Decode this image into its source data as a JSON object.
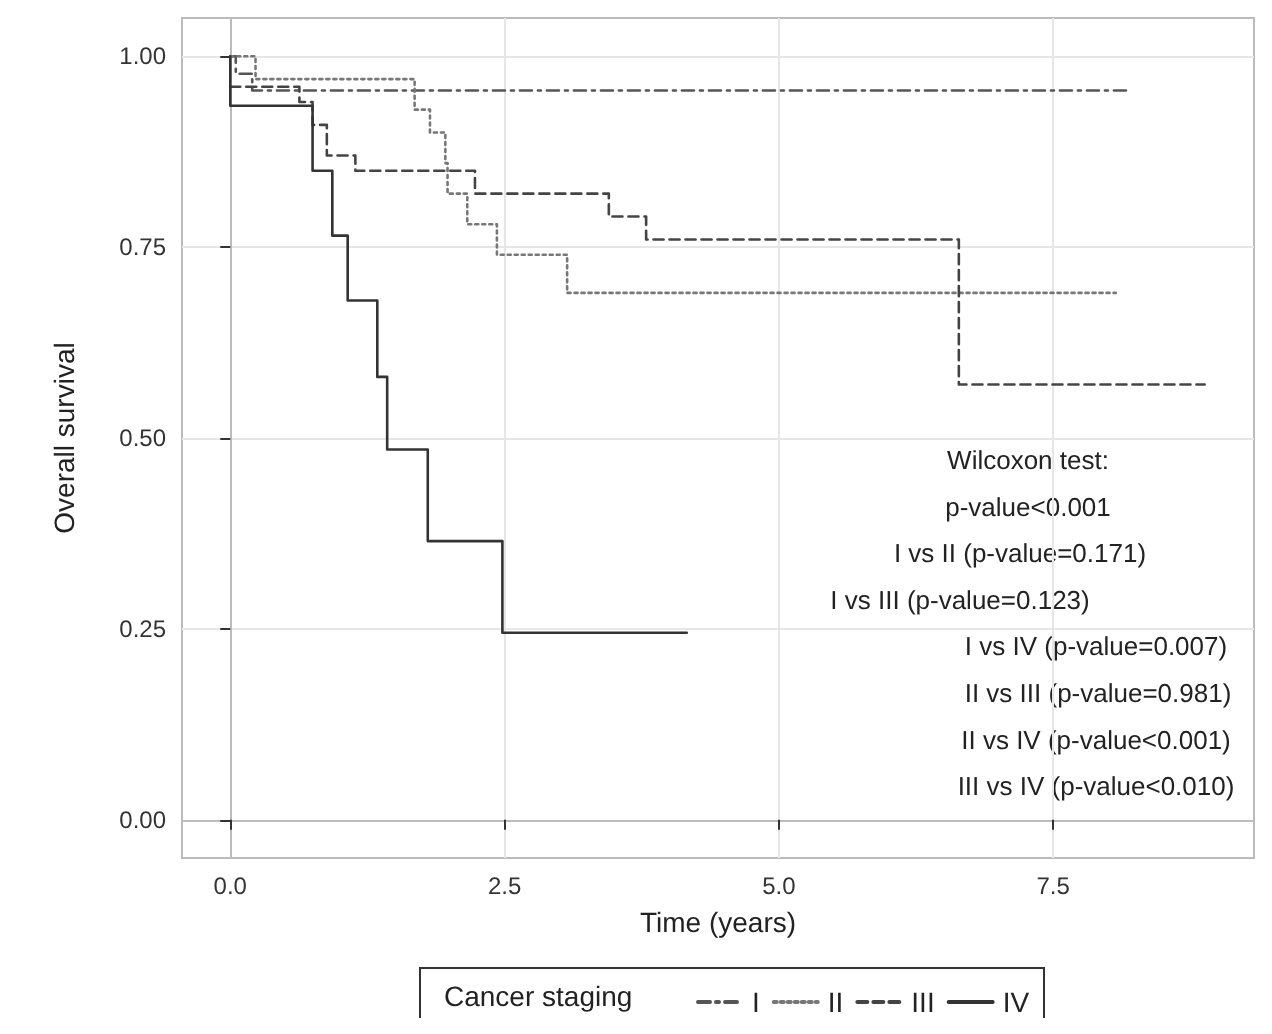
{
  "chart_data": {
    "type": "step",
    "xlabel": "Time (years)",
    "ylabel": "Overall survival",
    "legend_title": "Cancer staging",
    "xlim": [
      -0.44,
      9.33
    ],
    "ylim": [
      -0.05,
      1.05
    ],
    "xticks": [
      {
        "value": 0,
        "label": "0.0"
      },
      2.5,
      {
        "value": 5,
        "label": "5.0"
      },
      7.5
    ],
    "yticks": [
      {
        "value": 0,
        "label": "0.00"
      },
      0.25,
      {
        "value": 0.5,
        "label": "0.50"
      },
      0.75,
      {
        "value": 1,
        "label": "1.00"
      }
    ],
    "grid": true,
    "legend": "bottom",
    "marker": "none",
    "series": [
      {
        "name": "I",
        "color": "#555555",
        "line_style": "dashdot",
        "x": [
          0,
          0.05,
          0.2,
          8.2
        ],
        "values": [
          1,
          0.977,
          0.955,
          0.955
        ]
      },
      {
        "name": "II",
        "color": "#777777",
        "line_style": "dotted",
        "x": [
          0,
          0.23,
          1.68,
          1.82,
          1.96,
          1.98,
          2.16,
          2.43,
          3.07,
          8.07
        ],
        "values": [
          1,
          0.97,
          0.93,
          0.9,
          0.86,
          0.82,
          0.78,
          0.74,
          0.69,
          0.69
        ]
      },
      {
        "name": "III",
        "color": "#444444",
        "line_style": "dashed",
        "x": [
          0,
          0.63,
          0.75,
          0.88,
          1.14,
          2.23,
          3.45,
          3.79,
          6.64,
          8.88
        ],
        "values": [
          0.96,
          0.94,
          0.91,
          0.87,
          0.85,
          0.82,
          0.79,
          0.76,
          0.57,
          0.57
        ]
      },
      {
        "name": "IV",
        "color": "#333333",
        "line_style": "solid",
        "x": [
          0,
          0,
          0.75,
          0.93,
          1.07,
          1.34,
          1.43,
          1.8,
          2.48,
          4.16
        ],
        "values": [
          1,
          0.935,
          0.85,
          0.765,
          0.68,
          0.58,
          0.485,
          0.365,
          0.245,
          0.245
        ]
      }
    ],
    "annotations": [
      "Wilcoxon test:",
      "p-value<0.001",
      "I vs II (p-value=0.171)",
      "I vs III (p-value=0.123)",
      "I vs IV (p-value=0.007)",
      "II vs III (p-value=0.981)",
      "II vs IV (p-value<0.001)",
      "III vs IV (p-value<0.010)"
    ]
  }
}
